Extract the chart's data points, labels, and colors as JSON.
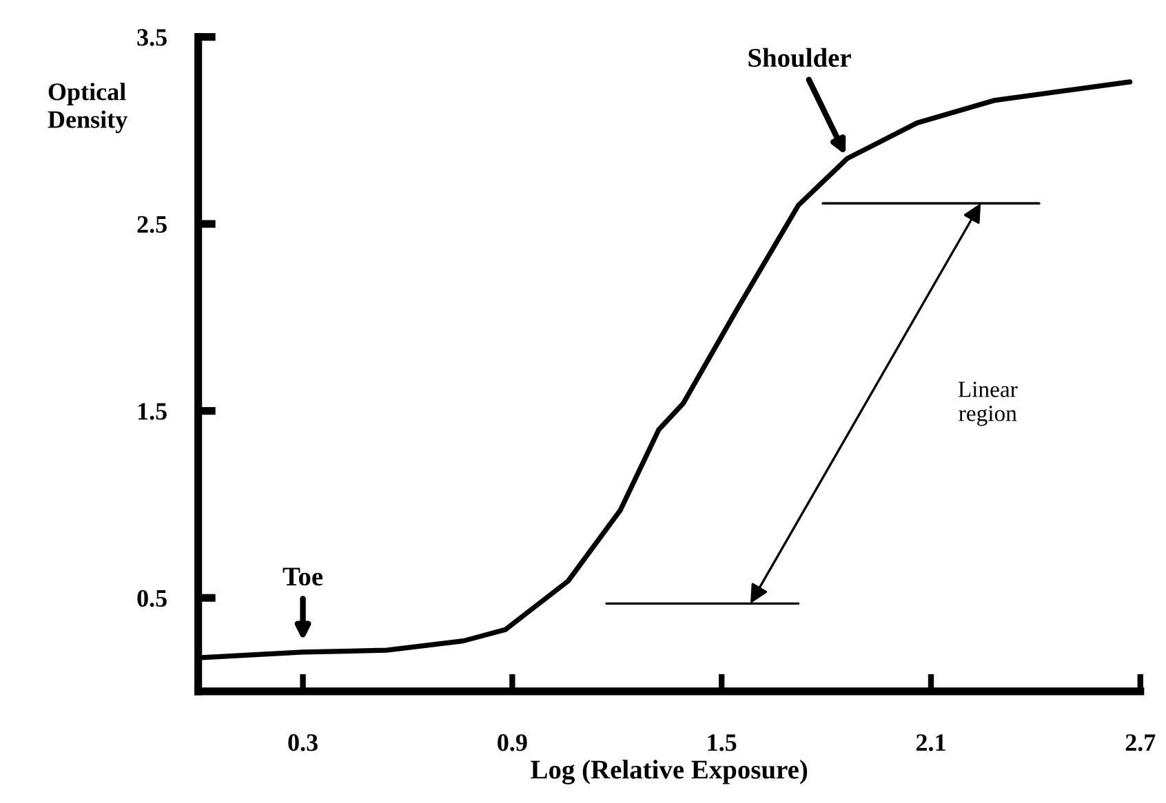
{
  "chart_data": {
    "type": "line",
    "xlabel": "Log (Relative Exposure)",
    "ylabel": "Optical\nDensity",
    "xlim": [
      0,
      2.7
    ],
    "xticks": [
      0.3,
      0.9,
      1.5,
      2.1,
      2.7
    ],
    "ylim": [
      0,
      3.5
    ],
    "yticks": [
      0.5,
      1.5,
      2.5,
      3.5
    ],
    "grid": false,
    "legend": false,
    "marker": "none",
    "line_style": "solid",
    "series": [
      {
        "color": "#000000",
        "x": [
          0.0,
          0.3,
          0.54,
          0.76,
          0.88,
          1.06,
          1.21,
          1.32,
          1.39,
          1.54,
          1.72,
          1.86,
          2.06,
          2.28,
          2.67
        ],
        "values": [
          0.18,
          0.21,
          0.22,
          0.27,
          0.33,
          0.59,
          0.97,
          1.4,
          1.54,
          2.03,
          2.6,
          2.85,
          3.04,
          3.16,
          3.26
        ]
      },
      {
        "color": "#000000",
        "x": [
          1.17,
          1.72
        ],
        "values": [
          0.47,
          0.47
        ]
      },
      {
        "color": "#000000",
        "x": [
          1.79,
          2.41
        ],
        "values": [
          2.61,
          2.61
        ]
      }
    ],
    "annotations": [
      {
        "text": "Toe",
        "x": 0.3,
        "y": 0.25
      },
      {
        "text": "Shoulder",
        "x": 1.86,
        "y": 2.85
      },
      "Linear\nregion"
    ]
  }
}
